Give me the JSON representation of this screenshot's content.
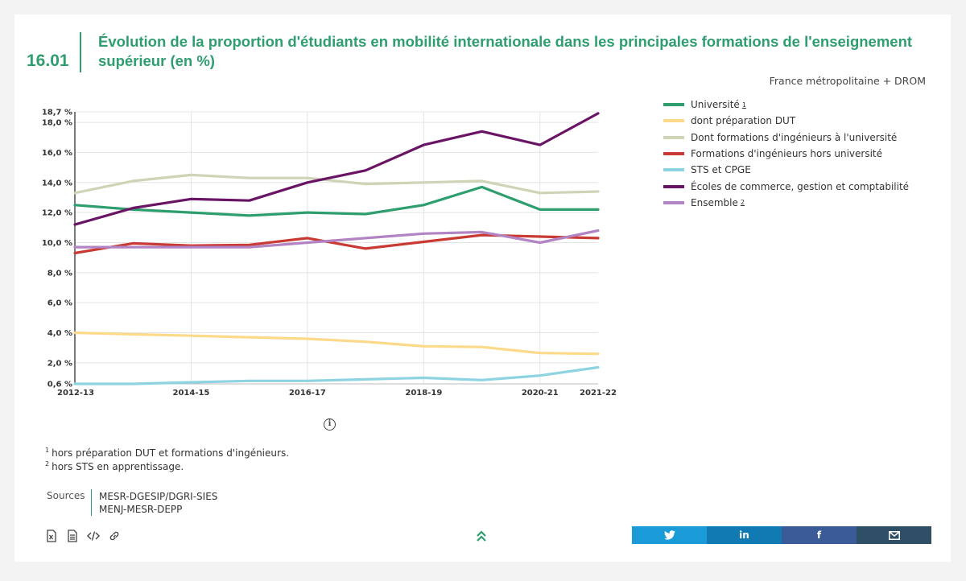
{
  "header": {
    "number": "16.01",
    "title": "Évolution de la proportion d'étudiants en mobilité internationale dans les principales formations de l'enseignement supérieur (en %)",
    "scope": "France métropolitaine + DROM"
  },
  "chart_data": {
    "type": "line",
    "x": [
      "2012-13",
      "2013-14",
      "2014-15",
      "2015-16",
      "2016-17",
      "2017-18",
      "2018-19",
      "2019-20",
      "2020-21",
      "2021-22"
    ],
    "x_tick_labels": [
      "2012-13",
      "2014-15",
      "2016-17",
      "2018-19",
      "2020-21",
      "2021-22"
    ],
    "y_tick_labels": [
      "0,6 %",
      "2,0 %",
      "4,0 %",
      "6,0 %",
      "8,0 %",
      "10,0 %",
      "12,0 %",
      "14,0 %",
      "16,0 %",
      "18,0 %",
      "18,7 %"
    ],
    "ylim": [
      0.6,
      18.7
    ],
    "grid": true,
    "legend_position": "right",
    "series": [
      {
        "name": "Université",
        "sup": "1",
        "color": "#2e9e6e",
        "values": [
          12.5,
          12.2,
          12.0,
          11.8,
          12.0,
          11.9,
          12.5,
          13.7,
          12.2,
          12.2
        ]
      },
      {
        "name": "dont préparation DUT",
        "sup": "",
        "color": "#fdd98a",
        "values": [
          4.0,
          3.9,
          3.8,
          3.7,
          3.6,
          3.4,
          3.1,
          3.05,
          2.65,
          2.6
        ]
      },
      {
        "name": "Dont formations d'ingénieurs à l'université",
        "sup": "",
        "color": "#cfd4b6",
        "values": [
          13.3,
          14.1,
          14.5,
          14.3,
          14.3,
          13.9,
          14.0,
          14.1,
          13.3,
          13.4
        ]
      },
      {
        "name": "Formations d'ingénieurs hors université",
        "sup": "",
        "color": "#c83a32",
        "values": [
          9.3,
          9.95,
          9.8,
          9.85,
          10.3,
          9.6,
          10.05,
          10.5,
          10.4,
          10.3
        ]
      },
      {
        "name": "STS et CPGE",
        "sup": "",
        "color": "#8dd3e2",
        "values": [
          0.6,
          0.6,
          0.7,
          0.8,
          0.8,
          0.9,
          1.0,
          0.85,
          1.15,
          1.7
        ]
      },
      {
        "name": "Écoles de commerce, gestion et comptabilité",
        "sup": "",
        "color": "#6a1466",
        "values": [
          11.2,
          12.3,
          12.9,
          12.8,
          14.0,
          14.8,
          16.5,
          17.4,
          16.5,
          18.6
        ]
      },
      {
        "name": "Ensemble",
        "sup": "2",
        "color": "#b384c4",
        "values": [
          9.7,
          9.7,
          9.7,
          9.7,
          10.0,
          10.3,
          10.6,
          10.7,
          10.0,
          10.8
        ]
      }
    ]
  },
  "notes": [
    {
      "sup": "1",
      "text": "hors préparation DUT et formations d'ingénieurs."
    },
    {
      "sup": "2",
      "text": "hors STS en apprentissage."
    }
  ],
  "sources": {
    "label": "Sources",
    "items": [
      "MESR-DGESIP/DGRI-SIES",
      "MENJ-MESR-DEPP"
    ]
  },
  "tools": [
    "excel-icon",
    "document-icon",
    "code-icon",
    "link-icon"
  ],
  "share": [
    {
      "name": "twitter",
      "icon": "twitter-icon",
      "color": "#1a9ad6"
    },
    {
      "name": "linkedin",
      "icon": "linkedin-icon",
      "color": "#127ab2",
      "glyph": "in"
    },
    {
      "name": "facebook",
      "icon": "facebook-icon",
      "color": "#3a5a98",
      "glyph": "f"
    },
    {
      "name": "email",
      "icon": "mail-icon",
      "color": "#2f4f66"
    }
  ]
}
